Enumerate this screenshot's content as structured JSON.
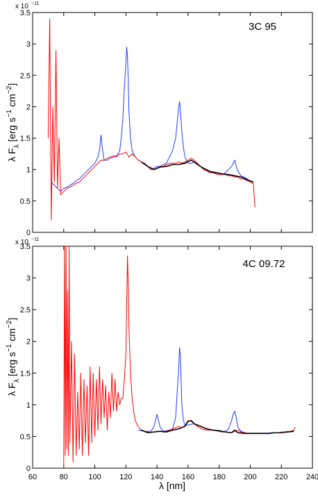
{
  "figure": {
    "xlabel": "λ [nm]",
    "ylabel_main": "λ F",
    "ylabel_sub": "λ",
    "ylabel_units": "[erg s",
    "ylabel_exp1": "−1",
    "ylabel_cm": " cm",
    "ylabel_exp2": "−2",
    "ylabel_close": "]",
    "exponent_base": "x 10",
    "exponent_power": "−11"
  },
  "chart_data": [
    {
      "type": "line",
      "title": "3C 95",
      "xlabel": "",
      "ylabel": "λ F_λ [erg s^-1 cm^-2]",
      "y_scale_label": "x 10^-11",
      "xlim": [
        60,
        240
      ],
      "ylim": [
        0,
        3.5
      ],
      "xticks": [],
      "yticks": [
        0,
        0.5,
        1,
        1.5,
        2,
        2.5,
        3,
        3.5
      ],
      "ytick_labels": [
        "0",
        "0.5",
        "1",
        "1.5",
        "2",
        "2.5",
        "3",
        "3.5"
      ],
      "series": [
        {
          "color": "#1f3cff",
          "x": [
            72,
            74,
            76,
            78,
            80,
            82,
            84,
            86,
            88,
            90,
            92,
            94,
            96,
            98,
            100,
            102,
            103,
            104,
            105,
            106,
            108,
            110,
            112,
            114,
            116,
            117,
            118,
            119,
            120,
            120.5,
            121,
            121.5,
            122,
            123,
            124,
            126,
            128,
            130,
            132,
            134,
            136,
            138,
            140,
            142,
            144,
            146,
            148,
            150,
            152,
            153,
            154,
            154.5,
            155,
            156,
            157,
            158,
            160,
            162,
            164,
            166,
            168,
            170,
            172,
            174,
            176,
            178,
            180,
            182,
            184,
            186,
            188,
            189,
            190,
            191,
            192,
            194,
            196,
            198,
            200,
            202
          ],
          "y": [
            0.8,
            0.75,
            0.7,
            0.65,
            0.7,
            0.72,
            0.75,
            0.78,
            0.82,
            0.85,
            0.9,
            0.95,
            1.0,
            1.05,
            1.1,
            1.2,
            1.3,
            1.55,
            1.3,
            1.15,
            1.15,
            1.18,
            1.2,
            1.22,
            1.3,
            1.5,
            1.8,
            2.3,
            2.7,
            2.95,
            2.8,
            2.4,
            1.9,
            1.5,
            1.3,
            1.2,
            1.15,
            1.12,
            1.1,
            1.05,
            1.0,
            1.02,
            1.05,
            1.05,
            1.08,
            1.1,
            1.2,
            1.3,
            1.5,
            1.75,
            2.0,
            2.08,
            1.95,
            1.6,
            1.35,
            1.2,
            1.1,
            1.1,
            1.12,
            1.1,
            1.05,
            1.0,
            0.98,
            0.95,
            0.95,
            0.93,
            0.92,
            0.92,
            0.95,
            1.0,
            1.05,
            1.1,
            1.15,
            1.05,
            0.98,
            0.9,
            0.88,
            0.85,
            0.82,
            0.8
          ]
        },
        {
          "color": "#ff0000",
          "x": [
            70,
            71,
            72,
            73,
            74,
            75,
            76,
            77,
            78,
            80,
            82,
            84,
            86,
            88,
            90,
            92,
            94,
            96,
            98,
            100,
            102,
            104,
            106,
            108,
            110,
            112,
            114,
            116,
            118,
            120,
            122,
            124,
            126,
            128,
            130,
            132,
            134,
            136,
            138,
            140,
            142,
            144,
            146,
            148,
            150,
            152,
            154,
            156,
            158,
            160,
            162,
            164,
            166,
            168,
            170,
            172,
            174,
            176,
            178,
            180,
            182,
            184,
            186,
            188,
            190,
            192,
            194,
            196,
            198,
            200,
            202,
            203
          ],
          "y": [
            1.5,
            3.4,
            0.2,
            2.0,
            0.8,
            2.9,
            0.7,
            1.5,
            0.6,
            0.65,
            0.7,
            0.72,
            0.75,
            0.78,
            0.8,
            0.85,
            0.9,
            0.95,
            1.0,
            1.05,
            1.1,
            1.15,
            1.15,
            1.18,
            1.2,
            1.22,
            1.2,
            1.25,
            1.25,
            1.28,
            1.2,
            1.25,
            1.2,
            1.15,
            1.12,
            1.1,
            1.05,
            1.0,
            1.0,
            1.02,
            1.05,
            1.05,
            1.08,
            1.1,
            1.1,
            1.1,
            1.12,
            1.1,
            1.12,
            1.15,
            1.18,
            1.15,
            1.1,
            1.05,
            1.0,
            0.98,
            0.95,
            0.95,
            0.93,
            0.92,
            0.92,
            0.92,
            0.9,
            0.9,
            0.88,
            0.88,
            0.85,
            0.85,
            0.82,
            0.8,
            0.78,
            0.4
          ]
        },
        {
          "color": "#000000",
          "x": [
            130,
            134,
            138,
            142,
            146,
            150,
            154,
            158,
            162,
            164,
            166,
            170,
            174,
            178,
            182,
            186,
            190,
            194,
            198,
            202
          ],
          "y": [
            1.12,
            1.05,
            1.0,
            1.04,
            1.05,
            1.08,
            1.08,
            1.1,
            1.15,
            1.12,
            1.08,
            1.02,
            0.97,
            0.95,
            0.93,
            0.92,
            0.9,
            0.88,
            0.84,
            0.8
          ]
        }
      ]
    },
    {
      "type": "line",
      "title": "4C 09.72",
      "xlabel": "λ [nm]",
      "ylabel": "λ F_λ [erg s^-1 cm^-2]",
      "y_scale_label": "x 10^-11",
      "xlim": [
        60,
        240
      ],
      "ylim": [
        0,
        3.5
      ],
      "xticks": [
        60,
        80,
        100,
        120,
        140,
        160,
        180,
        200,
        220,
        240
      ],
      "xtick_labels": [
        "60",
        "80",
        "100",
        "120",
        "140",
        "160",
        "180",
        "200",
        "220",
        "240"
      ],
      "yticks": [
        0,
        0.5,
        1,
        1.5,
        2,
        2.5,
        3,
        3.5
      ],
      "ytick_labels": [
        "0",
        "0.5",
        "1",
        "1.5",
        "2",
        "2.5",
        "3",
        "3.5"
      ],
      "series": [
        {
          "color": "#1f3cff",
          "x": [
            128,
            132,
            136,
            138,
            139,
            140,
            141,
            142,
            144,
            148,
            150,
            152,
            153,
            154,
            154.5,
            155,
            155.5,
            156,
            157,
            158,
            160,
            164,
            168,
            172,
            176,
            180,
            184,
            186,
            188,
            189,
            190,
            191,
            192,
            194,
            198,
            202,
            206,
            210,
            214,
            218,
            222,
            226,
            228
          ],
          "y": [
            0.6,
            0.58,
            0.58,
            0.65,
            0.75,
            0.85,
            0.75,
            0.65,
            0.58,
            0.6,
            0.62,
            0.8,
            1.2,
            1.6,
            1.9,
            1.8,
            1.4,
            1.0,
            0.75,
            0.68,
            0.68,
            0.7,
            0.66,
            0.62,
            0.6,
            0.58,
            0.58,
            0.62,
            0.75,
            0.85,
            0.9,
            0.8,
            0.65,
            0.58,
            0.55,
            0.55,
            0.55,
            0.55,
            0.56,
            0.56,
            0.57,
            0.58,
            0.6
          ]
        },
        {
          "color": "#ff0000",
          "x": [
            80,
            80.5,
            81,
            81.5,
            82,
            82.5,
            83,
            83.5,
            84,
            85,
            86,
            87,
            88,
            89,
            90,
            91,
            92,
            93,
            94,
            95,
            96,
            97,
            98,
            99,
            100,
            101,
            102,
            103,
            104,
            105,
            106,
            107,
            108,
            109,
            110,
            111,
            112,
            113,
            114,
            115,
            116,
            117,
            118,
            119,
            120,
            120.5,
            121,
            121.5,
            122,
            123,
            124,
            125,
            126,
            128,
            130,
            132,
            134,
            136,
            138,
            140,
            142,
            144,
            146,
            148,
            150,
            152,
            154,
            156,
            158,
            160,
            162,
            164,
            166,
            168,
            170,
            172,
            174,
            176,
            178,
            180,
            182,
            184,
            186,
            188,
            190,
            192,
            194,
            196,
            198,
            200,
            202,
            204,
            206,
            208,
            210,
            212,
            214,
            216,
            218,
            220,
            222,
            224,
            226,
            228,
            229
          ],
          "y": [
            0,
            3.5,
            0.2,
            3.5,
            0.3,
            2.8,
            0.2,
            3.5,
            0.4,
            2.0,
            0.1,
            1.8,
            0.2,
            1.2,
            0.3,
            1.5,
            0.2,
            1.4,
            0.4,
            1.3,
            0.2,
            1.6,
            0.4,
            1.5,
            0.5,
            1.4,
            0.6,
            1.6,
            0.7,
            1.4,
            0.8,
            1.3,
            0.6,
            1.2,
            0.8,
            1.5,
            0.9,
            1.4,
            0.9,
            1.2,
            1.0,
            1.1,
            1.1,
            1.4,
            1.8,
            2.6,
            3.35,
            2.9,
            2.2,
            1.5,
            1.1,
            0.9,
            0.75,
            0.65,
            0.6,
            0.58,
            0.57,
            0.56,
            0.57,
            0.58,
            0.58,
            0.57,
            0.58,
            0.6,
            0.62,
            0.64,
            0.66,
            0.64,
            0.67,
            0.75,
            0.74,
            0.7,
            0.66,
            0.63,
            0.61,
            0.6,
            0.6,
            0.6,
            0.6,
            0.58,
            0.57,
            0.57,
            0.56,
            0.56,
            0.58,
            0.6,
            0.57,
            0.56,
            0.55,
            0.55,
            0.55,
            0.55,
            0.55,
            0.55,
            0.55,
            0.55,
            0.55,
            0.56,
            0.56,
            0.57,
            0.57,
            0.58,
            0.58,
            0.6,
            0.65
          ]
        },
        {
          "color": "#000000",
          "x": [
            130,
            134,
            138,
            142,
            146,
            150,
            154,
            158,
            160,
            162,
            164,
            168,
            172,
            176,
            180,
            184,
            188,
            190,
            192,
            196,
            200,
            204,
            208,
            212,
            216,
            220,
            224,
            228
          ],
          "y": [
            0.6,
            0.56,
            0.57,
            0.58,
            0.57,
            0.6,
            0.62,
            0.66,
            0.74,
            0.75,
            0.7,
            0.66,
            0.62,
            0.6,
            0.59,
            0.57,
            0.56,
            0.6,
            0.56,
            0.55,
            0.55,
            0.55,
            0.55,
            0.55,
            0.56,
            0.56,
            0.57,
            0.58
          ]
        }
      ]
    }
  ]
}
